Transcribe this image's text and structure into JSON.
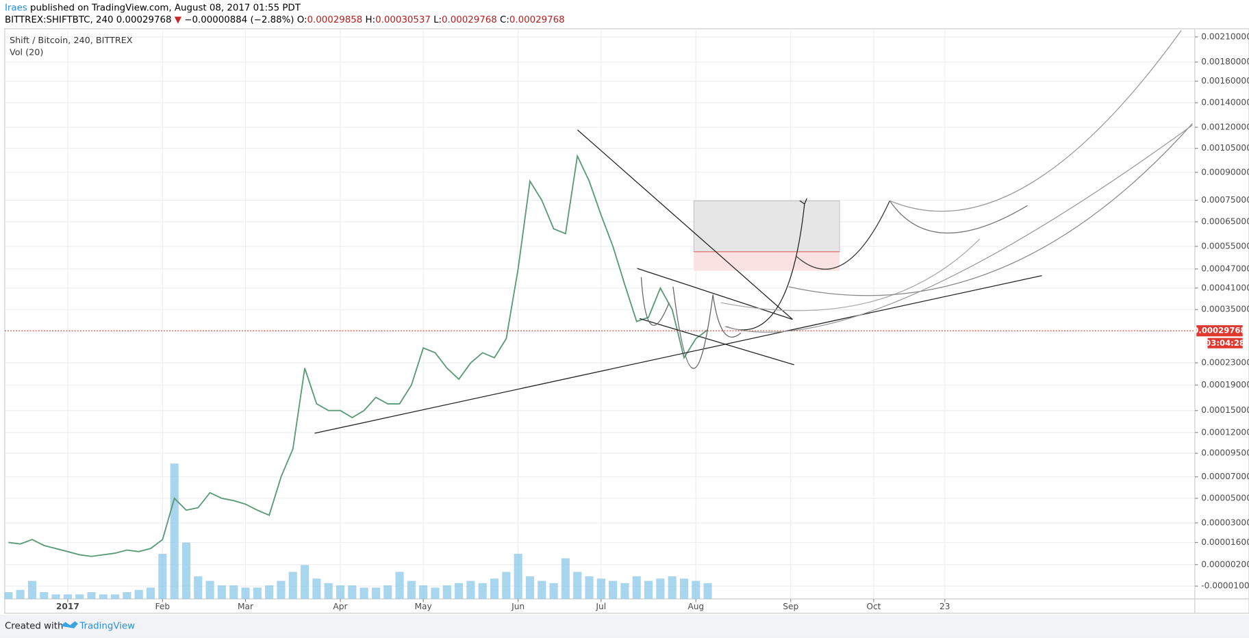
{
  "header": {
    "author": "Iraes",
    "published": " published on TradingView.com, August 08, 2017 01:55 PDT",
    "symbol": "BITTREX:SHIFTBTC, 240",
    "last": "0.00029768",
    "arrow": "▼",
    "change": "−0.00000884 (−2.88%)",
    "o_label": "O:",
    "o": "0.00029858",
    "h_label": "H:",
    "h": "0.00030537",
    "l_label": "L:",
    "l": "0.00029768",
    "c_label": "C:",
    "c": "0.00029768"
  },
  "chart_data": {
    "type": "line",
    "title": "Shift / Bitcoin, 240, BITTREX",
    "volume_title": "Vol (20)",
    "color": "#5b9a77",
    "volume_color": "#8cc8ea",
    "last_color": "#e0392f",
    "categories": [
      null,
      null,
      null,
      null,
      null,
      "2017",
      null,
      null,
      null,
      null,
      null,
      null,
      null,
      "Feb",
      null,
      null,
      null,
      null,
      null,
      null,
      "Mar",
      null,
      null,
      null,
      null,
      null,
      null,
      null,
      "Apr",
      null,
      null,
      null,
      null,
      null,
      null,
      "May",
      null,
      null,
      null,
      null,
      null,
      null,
      null,
      "Jun",
      null,
      null,
      null,
      null,
      null,
      null,
      "Jul",
      null,
      null,
      null,
      null,
      null,
      null,
      null,
      "Aug",
      null,
      null,
      null,
      null,
      null,
      null,
      null,
      "Sep",
      null,
      null,
      null,
      null,
      null,
      null,
      "Oct",
      null,
      null,
      null,
      null,
      null,
      "23",
      null,
      null,
      null,
      null,
      null,
      null,
      null,
      null,
      null,
      null,
      null,
      null,
      null,
      null,
      null,
      null,
      null
    ],
    "values": [
      1.6e-05,
      1.5e-05,
      1.8e-05,
      1.4e-05,
      1.2e-05,
      1e-05,
      8e-06,
      7e-06,
      8e-06,
      9e-06,
      1.1e-05,
      1e-05,
      1.2e-05,
      1.8e-05,
      5e-05,
      4e-05,
      4.2e-05,
      5.5e-05,
      5e-05,
      4.8e-05,
      4.5e-05,
      4e-05,
      3.6e-05,
      7e-05,
      0.0001,
      0.00022,
      0.00016,
      0.00015,
      0.00015,
      0.00014,
      0.00015,
      0.00017,
      0.00016,
      0.00016,
      0.00019,
      0.00026,
      0.00025,
      0.00022,
      0.0002,
      0.00023,
      0.00025,
      0.00024,
      0.00028,
      0.00047,
      0.00085,
      0.00075,
      0.00062,
      0.0006,
      0.001,
      0.00085,
      0.00068,
      0.00055,
      0.00042,
      0.00032,
      0.00033,
      0.00041,
      0.00035,
      0.00024,
      0.00028,
      0.0003,
      null,
      null,
      null,
      null,
      null,
      null,
      null,
      null,
      null,
      null,
      null,
      null,
      null,
      null,
      null,
      null,
      null,
      null,
      null,
      null,
      null,
      null,
      null,
      null,
      null,
      null,
      null,
      null,
      null,
      null,
      null,
      null,
      null,
      null,
      null,
      null,
      null
    ],
    "volume": [
      3,
      4,
      8,
      3,
      2,
      2,
      2,
      3,
      2,
      2,
      3,
      4,
      5,
      20,
      60,
      25,
      10,
      8,
      6,
      6,
      5,
      5,
      6,
      8,
      12,
      15,
      9,
      7,
      6,
      6,
      5,
      5,
      6,
      12,
      8,
      6,
      5,
      6,
      7,
      8,
      7,
      9,
      12,
      20,
      10,
      8,
      7,
      18,
      12,
      10,
      9,
      8,
      7,
      10,
      8,
      9,
      10,
      9,
      8,
      7,
      null,
      null,
      null,
      null,
      null,
      null,
      null,
      null,
      null,
      null,
      null,
      null,
      null,
      null,
      null,
      null,
      null,
      null,
      null,
      null,
      null,
      null,
      null,
      null,
      null,
      null,
      null,
      null,
      null,
      null,
      null,
      null,
      null,
      null,
      null,
      null,
      null
    ],
    "ylim": [
      -1.8e-05,
      0.00225
    ],
    "yticks": [
      {
        "value": 0.0021,
        "label": "0.00210000"
      },
      {
        "value": 0.0018,
        "label": "0.00180000"
      },
      {
        "value": 0.0016,
        "label": "0.00160000"
      },
      {
        "value": 0.0014,
        "label": "0.00140000"
      },
      {
        "value": 0.0012,
        "label": "0.00120000"
      },
      {
        "value": 0.00105,
        "label": "0.00105000"
      },
      {
        "value": 0.0009,
        "label": "0.00090000"
      },
      {
        "value": 0.00075,
        "label": "0.00075000"
      },
      {
        "value": 0.00065,
        "label": "0.00065000"
      },
      {
        "value": 0.00055,
        "label": "0.00055000"
      },
      {
        "value": 0.00047,
        "label": "0.00047000"
      },
      {
        "value": 0.00041,
        "label": "0.00041000"
      },
      {
        "value": 0.00035,
        "label": "0.00035000"
      },
      {
        "value": 0.00023,
        "label": "0.00023000"
      },
      {
        "value": 0.00019,
        "label": "0.00019000"
      },
      {
        "value": 0.00015,
        "label": "0.00015000"
      },
      {
        "value": 0.00012,
        "label": "0.00012000"
      },
      {
        "value": 9.5e-05,
        "label": "0.00009500"
      },
      {
        "value": 7e-05,
        "label": "0.00007000"
      },
      {
        "value": 5e-05,
        "label": "0.00005000"
      },
      {
        "value": 3e-05,
        "label": "0.00003000"
      },
      {
        "value": 1.6e-05,
        "label": "0.00001600"
      },
      {
        "value": 2e-06,
        "label": "0.00000200"
      },
      {
        "value": -1e-05,
        "label": "-0.00001000"
      }
    ],
    "last_price": 0.00029768,
    "countdown": "03:04:28",
    "grid": true
  },
  "footer": {
    "created": "Created with",
    "brand": "TradingView"
  }
}
